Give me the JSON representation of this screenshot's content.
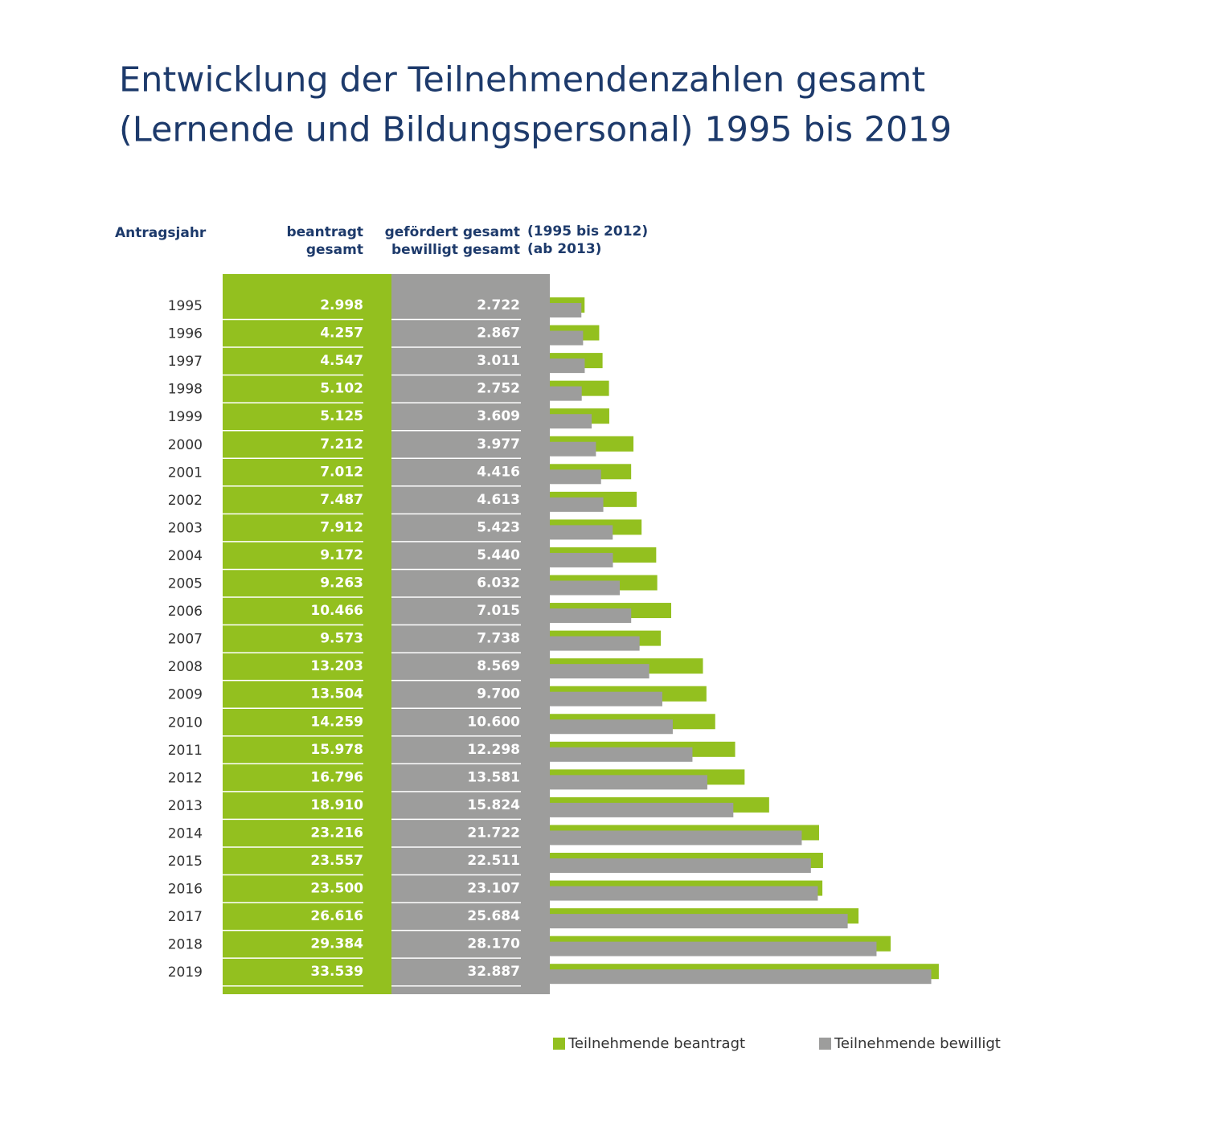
{
  "chart_data": {
    "type": "bar",
    "orientation": "horizontal",
    "title": [
      "Entwicklung der Teilnehmendenzahlen gesamt",
      "(Lernende und Bildungspersonal) 1995 bis 2019"
    ],
    "column_headers": {
      "year": "Antragsjahr",
      "requested": [
        "beantragt",
        "gesamt"
      ],
      "granted": [
        "gefördert gesamt",
        "bewilligt gesamt"
      ],
      "granted_note": [
        "(1995 bis 2012)",
        "(ab 2013)"
      ]
    },
    "categories": [
      "1995",
      "1996",
      "1997",
      "1998",
      "1999",
      "2000",
      "2001",
      "2002",
      "2003",
      "2004",
      "2005",
      "2006",
      "2007",
      "2008",
      "2009",
      "2010",
      "2011",
      "2012",
      "2013",
      "2014",
      "2015",
      "2016",
      "2017",
      "2018",
      "2019"
    ],
    "xlim": [
      0,
      35000
    ],
    "series": [
      {
        "name": "Teilnehmende beantragt",
        "color": "#93c01f",
        "values": [
          2998,
          4257,
          4547,
          5102,
          5125,
          7212,
          7012,
          7487,
          7912,
          9172,
          9263,
          10466,
          9573,
          13203,
          13504,
          14259,
          15978,
          16796,
          18910,
          23216,
          23557,
          23500,
          26616,
          29384,
          33539
        ],
        "value_labels": [
          "2.998",
          "4.257",
          "4.547",
          "5.102",
          "5.125",
          "7.212",
          "7.012",
          "7.487",
          "7.912",
          "9.172",
          "9.263",
          "10.466",
          "9.573",
          "13.203",
          "13.504",
          "14.259",
          "15.978",
          "16.796",
          "18.910",
          "23.216",
          "23.557",
          "23.500",
          "26.616",
          "29.384",
          "33.539"
        ]
      },
      {
        "name": "Teilnehmende bewilligt",
        "color": "#9d9d9c",
        "values": [
          2722,
          2867,
          3011,
          2752,
          3609,
          3977,
          4416,
          4613,
          5423,
          5440,
          6032,
          7015,
          7738,
          8569,
          9700,
          10600,
          12298,
          13581,
          15824,
          21722,
          22511,
          23107,
          25684,
          28170,
          32887
        ],
        "value_labels": [
          "2.722",
          "2.867",
          "3.011",
          "2.752",
          "3.609",
          "3.977",
          "4.416",
          "4.613",
          "5.423",
          "5.440",
          "6.032",
          "7.015",
          "7.738",
          "8.569",
          "9.700",
          "10.600",
          "12.298",
          "13.581",
          "15.824",
          "21.722",
          "22.511",
          "23.107",
          "25.684",
          "28.170",
          "32.887"
        ]
      }
    ]
  }
}
